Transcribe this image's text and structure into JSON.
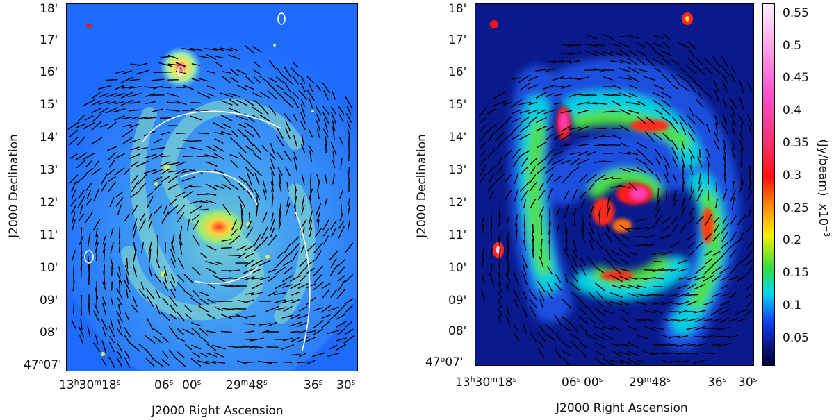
{
  "left_panel": {
    "xlabel": "J2000 Right Ascension",
    "ylabel": "J2000 Declination",
    "dec_ticks": [
      "18'",
      "17'",
      "16'",
      "15'",
      "14'",
      "13'",
      "12'",
      "11'",
      "10'",
      "09'",
      "08'"
    ],
    "dec_origin": {
      "deg": "47",
      "min": "07'"
    },
    "ra_ticks": [
      {
        "h": "13",
        "m": "30",
        "s": "18"
      },
      {
        "s": "06"
      },
      {
        "s": "00"
      },
      {
        "m": "29",
        "s": "48"
      },
      {
        "s": "36"
      },
      {
        "s": "30"
      }
    ]
  },
  "right_panel": {
    "xlabel": "J2000 Right Ascension",
    "ylabel": "J2000 Declination",
    "dec_ticks": [
      "18'",
      "17'",
      "16'",
      "15'",
      "14'",
      "13'",
      "12'",
      "11'",
      "10'",
      "09'",
      "08'"
    ],
    "dec_origin": {
      "deg": "47",
      "min": "07'"
    },
    "ra_ticks": [
      {
        "h": "13",
        "m": "30",
        "s": "18"
      },
      {
        "s": "06"
      },
      {
        "s": "00"
      },
      {
        "m": "29",
        "s": "48"
      },
      {
        "s": "36"
      },
      {
        "s": "30"
      }
    ]
  },
  "colorbar": {
    "ticks": [
      "0.55",
      "0.5",
      "0.45",
      "0.4",
      "0.35",
      "0.3",
      "0.25",
      "0.2",
      "0.15",
      "0.1",
      "0.05"
    ],
    "title": "(Jy/beam)",
    "scale_base": "x10",
    "scale_exp": "−3"
  },
  "colors": {
    "left_background": "#1e6bff",
    "right_background": "#0a1a8c",
    "polarization_vector": "#000000",
    "contour": "#ffffff",
    "beam": "#ff1010"
  }
}
